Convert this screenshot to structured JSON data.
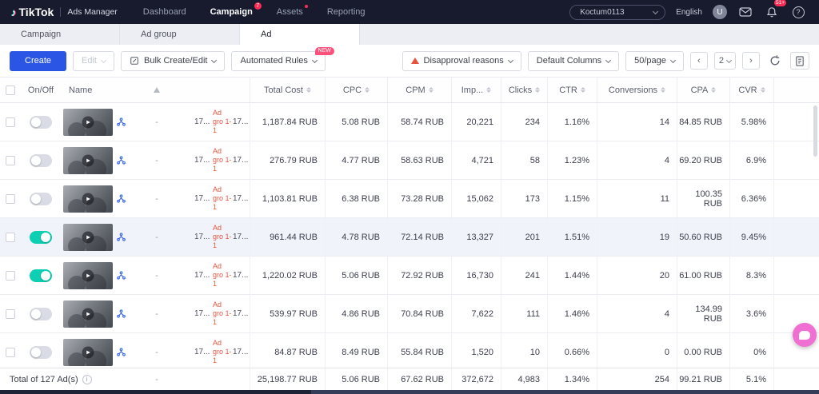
{
  "colors": {
    "accent": "#2a55e5",
    "nav-bg": "#171b2d",
    "toggle-on": "#0dcfb4",
    "badge-red": "#fe2c55",
    "warning-red": "#e6533f",
    "adgroup-red": "#e8543e",
    "chat-pink": "#ef6fd3"
  },
  "icons": {
    "play": "▶",
    "info": "i",
    "question": "?",
    "prev": "‹",
    "next": "›",
    "logo_note": "♪"
  },
  "nav": {
    "logo": "TikTok",
    "product": "Ads Manager",
    "items": [
      {
        "label": "Dashboard"
      },
      {
        "label": "Campaign",
        "badge": "7"
      },
      {
        "label": "Assets"
      },
      {
        "label": "Reporting"
      }
    ],
    "account": "Koctum0113",
    "language": "English",
    "avatar_initial": "U",
    "bell_badge": "51+"
  },
  "tabs": [
    {
      "label": "Campaign"
    },
    {
      "label": "Ad group"
    },
    {
      "label": "Ad"
    }
  ],
  "toolbar": {
    "create": "Create",
    "edit": "Edit",
    "bulk_create_edit": "Bulk Create/Edit",
    "automated_rules": "Automated Rules",
    "new_badge": "NEW",
    "disapproval_reasons": "Disapproval reasons",
    "default_columns": "Default Columns",
    "page_size": "50/page",
    "current_page": "2"
  },
  "table": {
    "headers": {
      "onoff": "On/Off",
      "name": "Name",
      "total_cost": "Total Cost",
      "cpc": "CPC",
      "cpm": "CPM",
      "impressions": "Imp...",
      "clicks": "Clicks",
      "ctr": "CTR",
      "conversions": "Conversions",
      "cpa": "CPA",
      "cvr": "CVR"
    },
    "rows": [
      {
        "on": false,
        "selected": false,
        "dash": "-",
        "id_a": "17...",
        "adgroup": "Ad gro 1-1",
        "id_b": "17...",
        "total_cost": "1,187.84 RUB",
        "cpc": "5.08 RUB",
        "cpm": "58.74 RUB",
        "impressions": "20,221",
        "clicks": "234",
        "ctr": "1.16%",
        "conversions": "14",
        "cpa": "84.85 RUB",
        "cvr": "5.98%"
      },
      {
        "on": false,
        "selected": false,
        "dash": "-",
        "id_a": "17...",
        "adgroup": "Ad gro 1-1",
        "id_b": "17...",
        "total_cost": "276.79 RUB",
        "cpc": "4.77 RUB",
        "cpm": "58.63 RUB",
        "impressions": "4,721",
        "clicks": "58",
        "ctr": "1.23%",
        "conversions": "4",
        "cpa": "69.20 RUB",
        "cvr": "6.9%"
      },
      {
        "on": false,
        "selected": false,
        "dash": "-",
        "id_a": "17...",
        "adgroup": "Ad gro 1-1",
        "id_b": "17...",
        "total_cost": "1,103.81 RUB",
        "cpc": "6.38 RUB",
        "cpm": "73.28 RUB",
        "impressions": "15,062",
        "clicks": "173",
        "ctr": "1.15%",
        "conversions": "11",
        "cpa": "100.35 RUB",
        "cvr": "6.36%"
      },
      {
        "on": true,
        "selected": true,
        "dash": "-",
        "id_a": "17...",
        "adgroup": "Ad gro 1-1",
        "id_b": "17...",
        "total_cost": "961.44 RUB",
        "cpc": "4.78 RUB",
        "cpm": "72.14 RUB",
        "impressions": "13,327",
        "clicks": "201",
        "ctr": "1.51%",
        "conversions": "19",
        "cpa": "50.60 RUB",
        "cvr": "9.45%"
      },
      {
        "on": true,
        "selected": false,
        "dash": "-",
        "id_a": "17...",
        "adgroup": "Ad gro 1-1",
        "id_b": "17...",
        "total_cost": "1,220.02 RUB",
        "cpc": "5.06 RUB",
        "cpm": "72.92 RUB",
        "impressions": "16,730",
        "clicks": "241",
        "ctr": "1.44%",
        "conversions": "20",
        "cpa": "61.00 RUB",
        "cvr": "8.3%"
      },
      {
        "on": false,
        "selected": false,
        "dash": "-",
        "id_a": "17...",
        "adgroup": "Ad gro 1-1",
        "id_b": "17...",
        "total_cost": "539.97 RUB",
        "cpc": "4.86 RUB",
        "cpm": "70.84 RUB",
        "impressions": "7,622",
        "clicks": "111",
        "ctr": "1.46%",
        "conversions": "4",
        "cpa": "134.99 RUB",
        "cvr": "3.6%"
      },
      {
        "on": false,
        "selected": false,
        "dash": "-",
        "id_a": "17...",
        "adgroup": "Ad gro 1-1",
        "id_b": "17...",
        "total_cost": "84.87 RUB",
        "cpc": "8.49 RUB",
        "cpm": "55.84 RUB",
        "impressions": "1,520",
        "clicks": "10",
        "ctr": "0.66%",
        "conversions": "0",
        "cpa": "0.00 RUB",
        "cvr": "0%"
      }
    ],
    "footer": {
      "label": "Total of 127 Ad(s)",
      "dash": "-",
      "total_cost": "25,198.77 RUB",
      "cpc": "5.06 RUB",
      "cpm": "67.62 RUB",
      "impressions": "372,672",
      "clicks": "4,983",
      "ctr": "1.34%",
      "conversions": "254",
      "cpa": "99.21 RUB",
      "cvr": "5.1%"
    }
  }
}
